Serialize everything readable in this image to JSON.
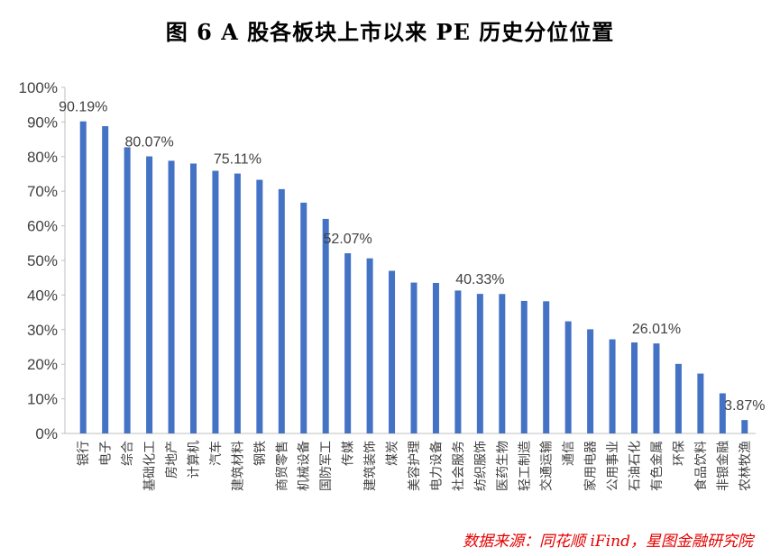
{
  "title": "图 6 A 股各板块上市以来 PE 历史分位位置",
  "source": "数据来源：同花顺 iFind，星图金融研究院",
  "colors": {
    "bar": "#4472c4",
    "axis": "#bfbfbf",
    "title": "#000000",
    "source": "#e60000"
  },
  "chart_data": {
    "type": "bar",
    "title": "图 6 A 股各板块上市以来 PE 历史分位位置",
    "xlabel": "",
    "ylabel": "",
    "ylim": [
      0,
      100
    ],
    "yticks": [
      "0%",
      "10%",
      "20%",
      "30%",
      "40%",
      "50%",
      "60%",
      "70%",
      "80%",
      "90%",
      "100%"
    ],
    "grid": false,
    "categories": [
      "银行",
      "电子",
      "综合",
      "基础化工",
      "房地产",
      "计算机",
      "汽车",
      "建筑材料",
      "钢铁",
      "商贸零售",
      "机械设备",
      "国防军工",
      "传媒",
      "建筑装饰",
      "煤炭",
      "美容护理",
      "电力设备",
      "社会服务",
      "纺织服饰",
      "医药生物",
      "轻工制造",
      "交通运输",
      "通信",
      "家用电器",
      "公用事业",
      "石油石化",
      "有色金属",
      "环保",
      "食品饮料",
      "非银金融",
      "农林牧渔"
    ],
    "values": [
      90.19,
      88.8,
      82.7,
      80.07,
      78.8,
      78.0,
      75.9,
      75.11,
      73.3,
      70.6,
      66.7,
      62.0,
      52.07,
      50.6,
      47.0,
      43.6,
      43.5,
      41.3,
      40.33,
      40.3,
      38.3,
      38.2,
      32.4,
      30.1,
      27.2,
      26.3,
      26.01,
      20.1,
      17.3,
      11.6,
      3.87
    ],
    "data_labels": [
      {
        "index": 0,
        "text": "90.19%"
      },
      {
        "index": 3,
        "text": "80.07%"
      },
      {
        "index": 7,
        "text": "75.11%"
      },
      {
        "index": 12,
        "text": "52.07%"
      },
      {
        "index": 18,
        "text": "40.33%"
      },
      {
        "index": 26,
        "text": "26.01%"
      },
      {
        "index": 30,
        "text": "3.87%"
      }
    ]
  }
}
